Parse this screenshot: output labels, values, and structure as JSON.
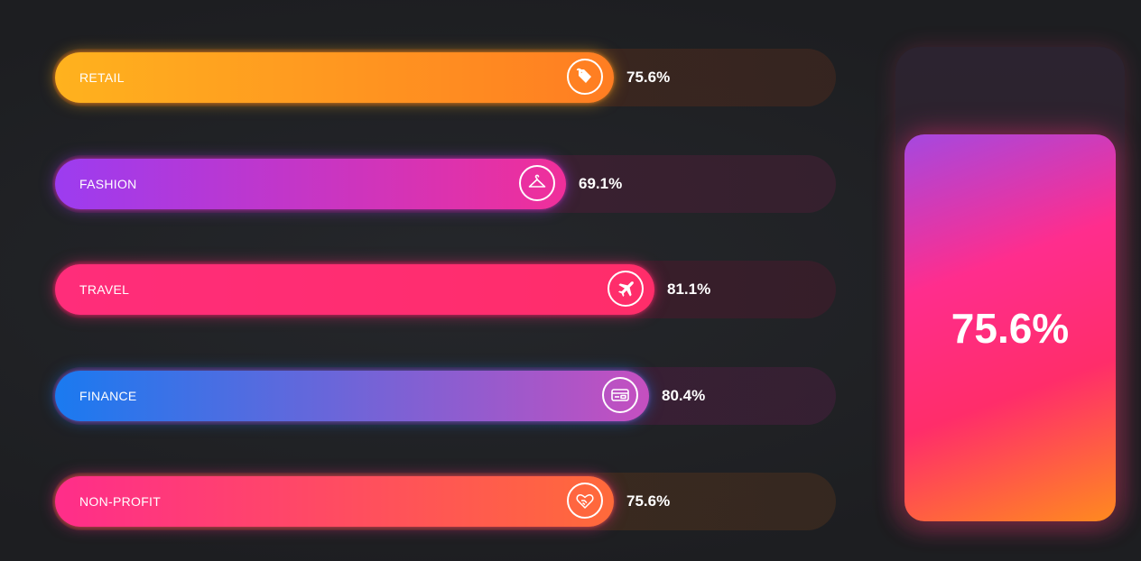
{
  "chart_data": {
    "type": "bar",
    "orientation": "horizontal",
    "categories": [
      "RETAIL",
      "FASHION",
      "TRAVEL",
      "FINANCE",
      "NON-PROFIT"
    ],
    "values": [
      75.6,
      69.1,
      81.1,
      80.4,
      75.6
    ],
    "value_labels": [
      "75.6%",
      "69.1%",
      "81.1%",
      "80.4%",
      "75.6%"
    ],
    "icons": [
      "price-tag-icon",
      "hanger-icon",
      "airplane-icon",
      "credit-card-icon",
      "heart-hands-icon"
    ],
    "colors": [
      [
        "#ffb21e",
        "#ff7d22"
      ],
      [
        "#9c3cf0",
        "#f02f9a"
      ],
      [
        "#ff2d7a",
        "#ff2d6a"
      ],
      [
        "#1a7af0",
        "#c54fc0"
      ],
      [
        "#ff2d8a",
        "#ff6a3a"
      ]
    ],
    "track_tints": [
      "#3b261f",
      "#3a2030",
      "#3a1d2a",
      "#3a1f35",
      "#3b2a1f"
    ],
    "xlim": [
      0,
      100
    ]
  },
  "gauge": {
    "value": 75.6,
    "label": "75.6%"
  }
}
